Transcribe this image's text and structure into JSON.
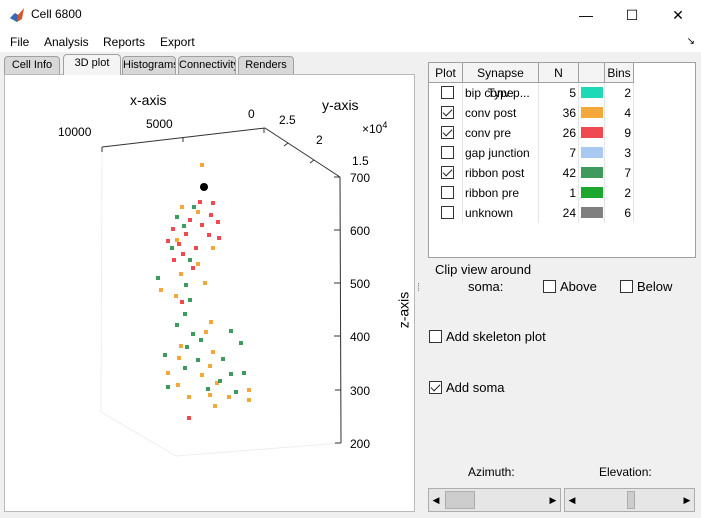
{
  "window": {
    "title": "Cell 6800",
    "minimize": "—",
    "maximize": "☐",
    "close": "✕"
  },
  "menu": {
    "file": "File",
    "analysis": "Analysis",
    "reports": "Reports",
    "export": "Export",
    "dock": "↘"
  },
  "tabs": [
    {
      "label": "Cell Info",
      "active": false
    },
    {
      "label": "3D plot",
      "active": true
    },
    {
      "label": "Histograms",
      "active": false
    },
    {
      "label": "Connectivity",
      "active": false
    },
    {
      "label": "Renders",
      "active": false
    }
  ],
  "plot": {
    "x_axis": {
      "title": "x-axis",
      "ticks": [
        "10000",
        "5000",
        "0"
      ]
    },
    "y_axis": {
      "title": "y-axis",
      "ticks": [
        "2.5",
        "2",
        "1.5"
      ],
      "exponent": "×10",
      "exponent_power": "4"
    },
    "z_axis": {
      "title": "z-axis",
      "ticks": [
        "700",
        "600",
        "500",
        "400",
        "300",
        "200"
      ]
    }
  },
  "table": {
    "headers": {
      "plot": "Plot",
      "type": "Synapse Type",
      "n": "N",
      "color": "",
      "bins": "Bins"
    },
    "rows": [
      {
        "plot": false,
        "type": "bip conv p...",
        "n": "5",
        "color": "#1dd9b5",
        "bins": "2"
      },
      {
        "plot": true,
        "type": "conv post",
        "n": "36",
        "color": "#f4a83c",
        "bins": "4"
      },
      {
        "plot": true,
        "type": "conv pre",
        "n": "26",
        "color": "#ef4a52",
        "bins": "9"
      },
      {
        "plot": false,
        "type": "gap junction",
        "n": "7",
        "color": "#a9c9f3",
        "bins": "3"
      },
      {
        "plot": true,
        "type": "ribbon post",
        "n": "42",
        "color": "#3f9a5e",
        "bins": "7"
      },
      {
        "plot": false,
        "type": "ribbon pre",
        "n": "1",
        "color": "#1ca82e",
        "bins": "2"
      },
      {
        "plot": false,
        "type": "unknown",
        "n": "24",
        "color": "#7f7f7f",
        "bins": "6"
      }
    ]
  },
  "controls": {
    "clip_label_1": "Clip view around",
    "clip_label_2": "soma:",
    "above": {
      "label": "Above",
      "checked": false
    },
    "below": {
      "label": "Below",
      "checked": false
    },
    "skeleton": {
      "label": "Add skeleton plot",
      "checked": false
    },
    "soma": {
      "label": "Add soma",
      "checked": true
    },
    "azimuth_label": "Azimuth:",
    "elevation_label": "Elevation:",
    "splitter": "⁞"
  }
}
